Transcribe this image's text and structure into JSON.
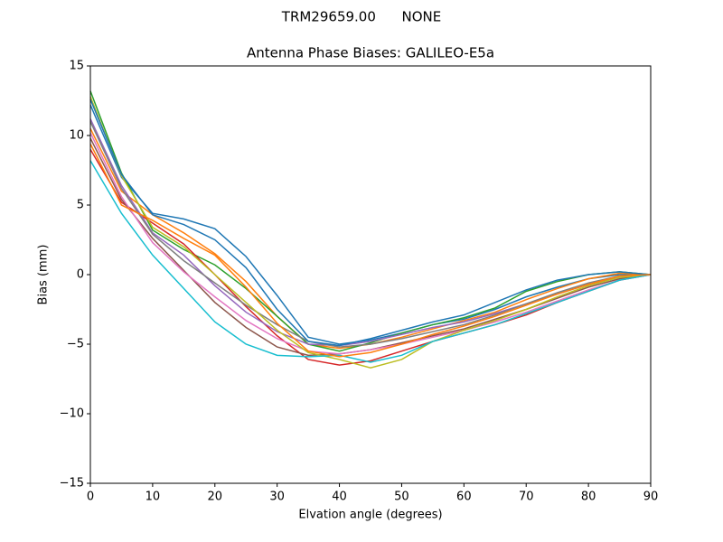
{
  "chart_data": {
    "type": "line",
    "suptitle": "TRM29659.00      NONE",
    "title": "Antenna Phase Biases: GALILEO-E5a",
    "xlabel": "Elvation angle (degrees)",
    "ylabel": "Bias (mm)",
    "x": [
      0,
      5,
      10,
      15,
      20,
      25,
      30,
      35,
      40,
      45,
      50,
      55,
      60,
      65,
      70,
      75,
      80,
      85,
      90
    ],
    "xlim": [
      0,
      90
    ],
    "xticks": [
      0,
      10,
      20,
      30,
      40,
      50,
      60,
      70,
      80,
      90
    ],
    "ylim": [
      -15,
      15
    ],
    "yticks": [
      {
        "value": -15,
        "label": "−15"
      },
      {
        "value": -10,
        "label": "−10"
      },
      {
        "value": -5,
        "label": "−5"
      },
      0,
      5,
      10,
      15
    ],
    "grid": false,
    "series": [
      {
        "color": "#1f77b4",
        "values": [
          12.2,
          7,
          4.4,
          4,
          3.3,
          1.3,
          -1.5,
          -4.5,
          -5,
          -4.7,
          -4.2,
          -3.6,
          -3.2,
          -2.5,
          -1.6,
          -0.9,
          -0.3,
          0,
          0
        ]
      },
      {
        "color": "#ff7f0e",
        "values": [
          10.5,
          6,
          4.3,
          3.0,
          1.5,
          -0.5,
          -3,
          -5,
          -5.3,
          -5,
          -4.5,
          -3.9,
          -3.3,
          -2.7,
          -1.8,
          -1,
          -0.3,
          0.1,
          0
        ]
      },
      {
        "color": "#2ca02c",
        "values": [
          13.2,
          7.3,
          3.2,
          1.8,
          0.7,
          -1,
          -3,
          -5,
          -5.5,
          -4.9,
          -4.2,
          -3.6,
          -3.1,
          -2.4,
          -1.2,
          -0.5,
          0,
          0.2,
          0
        ]
      },
      {
        "color": "#d62728",
        "values": [
          9,
          5.2,
          3.7,
          2.2,
          0,
          -2.3,
          -4.4,
          -6.1,
          -6.5,
          -6.2,
          -5.5,
          -4.8,
          -4.2,
          -3.6,
          -2.9,
          -2,
          -1.2,
          -0.4,
          0
        ]
      },
      {
        "color": "#9467bd",
        "values": [
          11.2,
          6.4,
          3,
          1.4,
          -0.8,
          -2.7,
          -4.1,
          -5,
          -5.1,
          -4.8,
          -4.3,
          -3.8,
          -3.4,
          -2.8,
          -2.1,
          -1.4,
          -0.7,
          -0.2,
          0
        ]
      },
      {
        "color": "#8c564b",
        "values": [
          9.8,
          5.4,
          2.6,
          0.3,
          -2,
          -3.8,
          -5.2,
          -5.8,
          -5.7,
          -5.4,
          -4.9,
          -4.4,
          -3.9,
          -3.2,
          -2.5,
          -1.7,
          -0.9,
          -0.3,
          0
        ]
      },
      {
        "color": "#e377c2",
        "values": [
          10.2,
          5.6,
          2.3,
          0.2,
          -1.6,
          -3.3,
          -4.6,
          -5.5,
          -5.7,
          -5.4,
          -5,
          -4.5,
          -4,
          -3.4,
          -2.7,
          -1.9,
          -1.1,
          -0.4,
          0
        ]
      },
      {
        "color": "#7f7f7f",
        "values": [
          11,
          6.2,
          2.9,
          1,
          -0.6,
          -2.2,
          -3.6,
          -4.8,
          -5.2,
          -5,
          -4.6,
          -4.1,
          -3.6,
          -2.9,
          -2.1,
          -1.3,
          -0.6,
          -0.1,
          0
        ]
      },
      {
        "color": "#bcbd22",
        "values": [
          12.8,
          7.1,
          3.4,
          2,
          0,
          -2,
          -4,
          -5.6,
          -6.1,
          -6.7,
          -6.1,
          -4.8,
          -4,
          -3.3,
          -2.5,
          -1.6,
          -0.8,
          -0.2,
          0
        ]
      },
      {
        "color": "#17becf",
        "values": [
          8.2,
          4.4,
          1.4,
          -1,
          -3.4,
          -5,
          -5.8,
          -5.9,
          -5.8,
          -6.3,
          -5.8,
          -4.8,
          -4.2,
          -3.6,
          -2.8,
          -2,
          -1.2,
          -0.4,
          0
        ]
      },
      {
        "color": "#1f77b4",
        "values": [
          12.6,
          7.2,
          4.3,
          3.6,
          2.5,
          0.5,
          -2.5,
          -4.8,
          -5.1,
          -4.6,
          -4,
          -3.4,
          -2.9,
          -2,
          -1.1,
          -0.4,
          0,
          0.2,
          0
        ]
      },
      {
        "color": "#ff7f0e",
        "values": [
          9.4,
          5,
          3.9,
          2.6,
          1.4,
          -0.9,
          -3.5,
          -5.5,
          -5.9,
          -5.6,
          -5,
          -4.3,
          -3.7,
          -3,
          -2.2,
          -1.4,
          -0.7,
          -0.1,
          0
        ]
      }
    ]
  }
}
